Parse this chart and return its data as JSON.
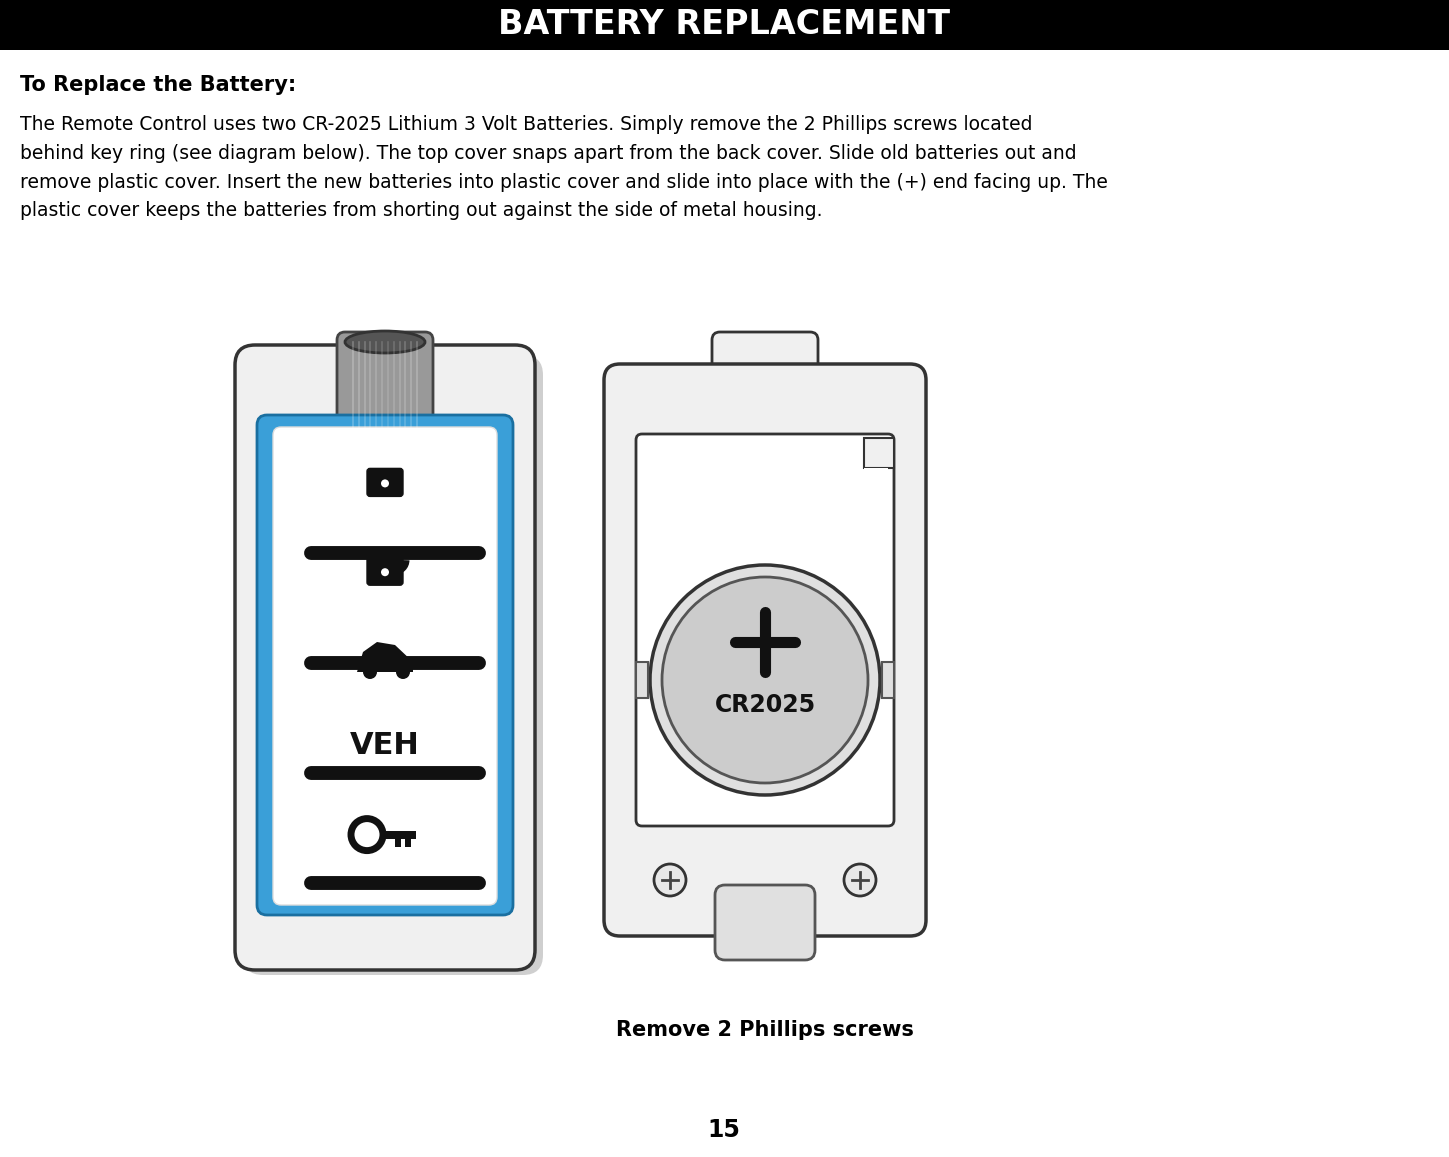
{
  "title": "BATTERY REPLACEMENT",
  "title_bg": "#000000",
  "title_color": "#ffffff",
  "subtitle": "To Replace the Battery:",
  "body_text": "The Remote Control uses two CR-2025 Lithium 3 Volt Batteries. Simply remove the 2 Phillips screws located\nbehind key ring (see diagram below). The top cover snaps apart from the back cover. Slide old batteries out and\nremove plastic cover. Insert the new batteries into plastic cover and slide into place with the (+) end facing up. The\nplastic cover keeps the batteries from shorting out against the side of metal housing.",
  "caption": "Remove 2 Phillips screws",
  "page_number": "15",
  "bg_color": "#ffffff",
  "text_color": "#000000",
  "blue_color": "#3a9fd8",
  "gray_body": "#d0d0d0",
  "gray_light": "#e8e8e8",
  "gray_dark": "#888888"
}
